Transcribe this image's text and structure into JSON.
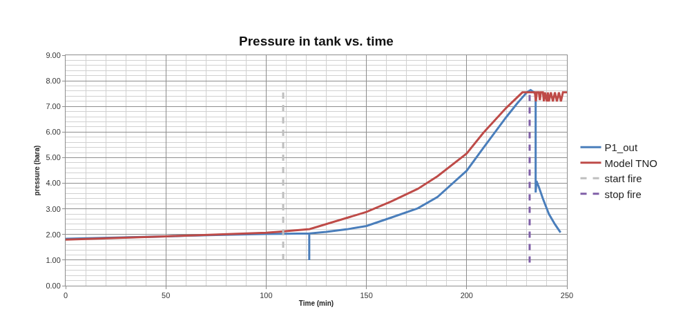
{
  "chart_data": {
    "type": "line",
    "title": "Pressure in tank vs. time",
    "xlabel": "Time (min)",
    "ylabel": "pressure (bara)",
    "xlim": [
      0,
      250
    ],
    "xticks": [
      0,
      50,
      100,
      150,
      200,
      250
    ],
    "ylim": [
      0,
      9
    ],
    "yticks": [
      {
        "value": 0,
        "label": "0.00"
      },
      {
        "value": 1,
        "label": "1.00"
      },
      {
        "value": 2,
        "label": "2.00"
      },
      {
        "value": 3,
        "label": "3.00"
      },
      {
        "value": 4,
        "label": "4.00"
      },
      {
        "value": 5,
        "label": "5.00"
      },
      {
        "value": 6,
        "label": "6.00"
      },
      {
        "value": 7,
        "label": "7.00"
      },
      {
        "value": 8,
        "label": "8.00"
      },
      {
        "value": 9,
        "label": "9.00"
      }
    ],
    "grid": true,
    "legend": "right",
    "marker": "none",
    "series": [
      {
        "name": "P1_out",
        "color": "#4a7ebb",
        "x": [
          0,
          25,
          50,
          75,
          100,
          110,
          121.5,
          121.5,
          121.5,
          130,
          140,
          150,
          162.4,
          175.6,
          185.4,
          200,
          208.3,
          219.8,
          225,
          230,
          231.9,
          233.5,
          234.4,
          234.4,
          234.8,
          236,
          238,
          241,
          244,
          246.8
        ],
        "values": [
          1.83,
          1.88,
          1.93,
          1.98,
          2.02,
          2.03,
          2.04,
          1.0,
          2.04,
          2.1,
          2.2,
          2.33,
          2.66,
          3.02,
          3.46,
          4.49,
          5.38,
          6.59,
          7.1,
          7.55,
          7.64,
          7.55,
          7.5,
          3.64,
          4.09,
          3.85,
          3.4,
          2.8,
          2.4,
          2.08
        ]
      },
      {
        "name": "Model TNO",
        "color": "#be4b48",
        "x": [
          0,
          50,
          100,
          105.7,
          121.7,
          150,
          162.4,
          175.6,
          185.4,
          200,
          208.3,
          219.8,
          227.8,
          234,
          234.5,
          235,
          236,
          236.5,
          237,
          238,
          238.5,
          239,
          240,
          240.5,
          241,
          242,
          243,
          244,
          245,
          246,
          247,
          248,
          250
        ],
        "values": [
          1.8,
          1.93,
          2.07,
          2.1,
          2.21,
          2.88,
          3.29,
          3.78,
          4.27,
          5.16,
          5.97,
          6.95,
          7.55,
          7.55,
          7.2,
          7.55,
          7.55,
          7.25,
          7.55,
          7.55,
          7.2,
          7.55,
          7.2,
          7.55,
          7.2,
          7.55,
          7.2,
          7.55,
          7.2,
          7.55,
          7.2,
          7.55,
          7.55
        ]
      },
      {
        "name": "start fire",
        "color": "#bfbfbf",
        "line_style": "dashed",
        "x": [
          108.5,
          108.5
        ],
        "values": [
          1.0,
          7.7
        ]
      },
      {
        "name": "stop fire",
        "color": "#7f5fa8",
        "line_style": "dashed",
        "x": [
          231.4,
          231.4
        ],
        "values": [
          0.9,
          7.6
        ]
      }
    ]
  }
}
